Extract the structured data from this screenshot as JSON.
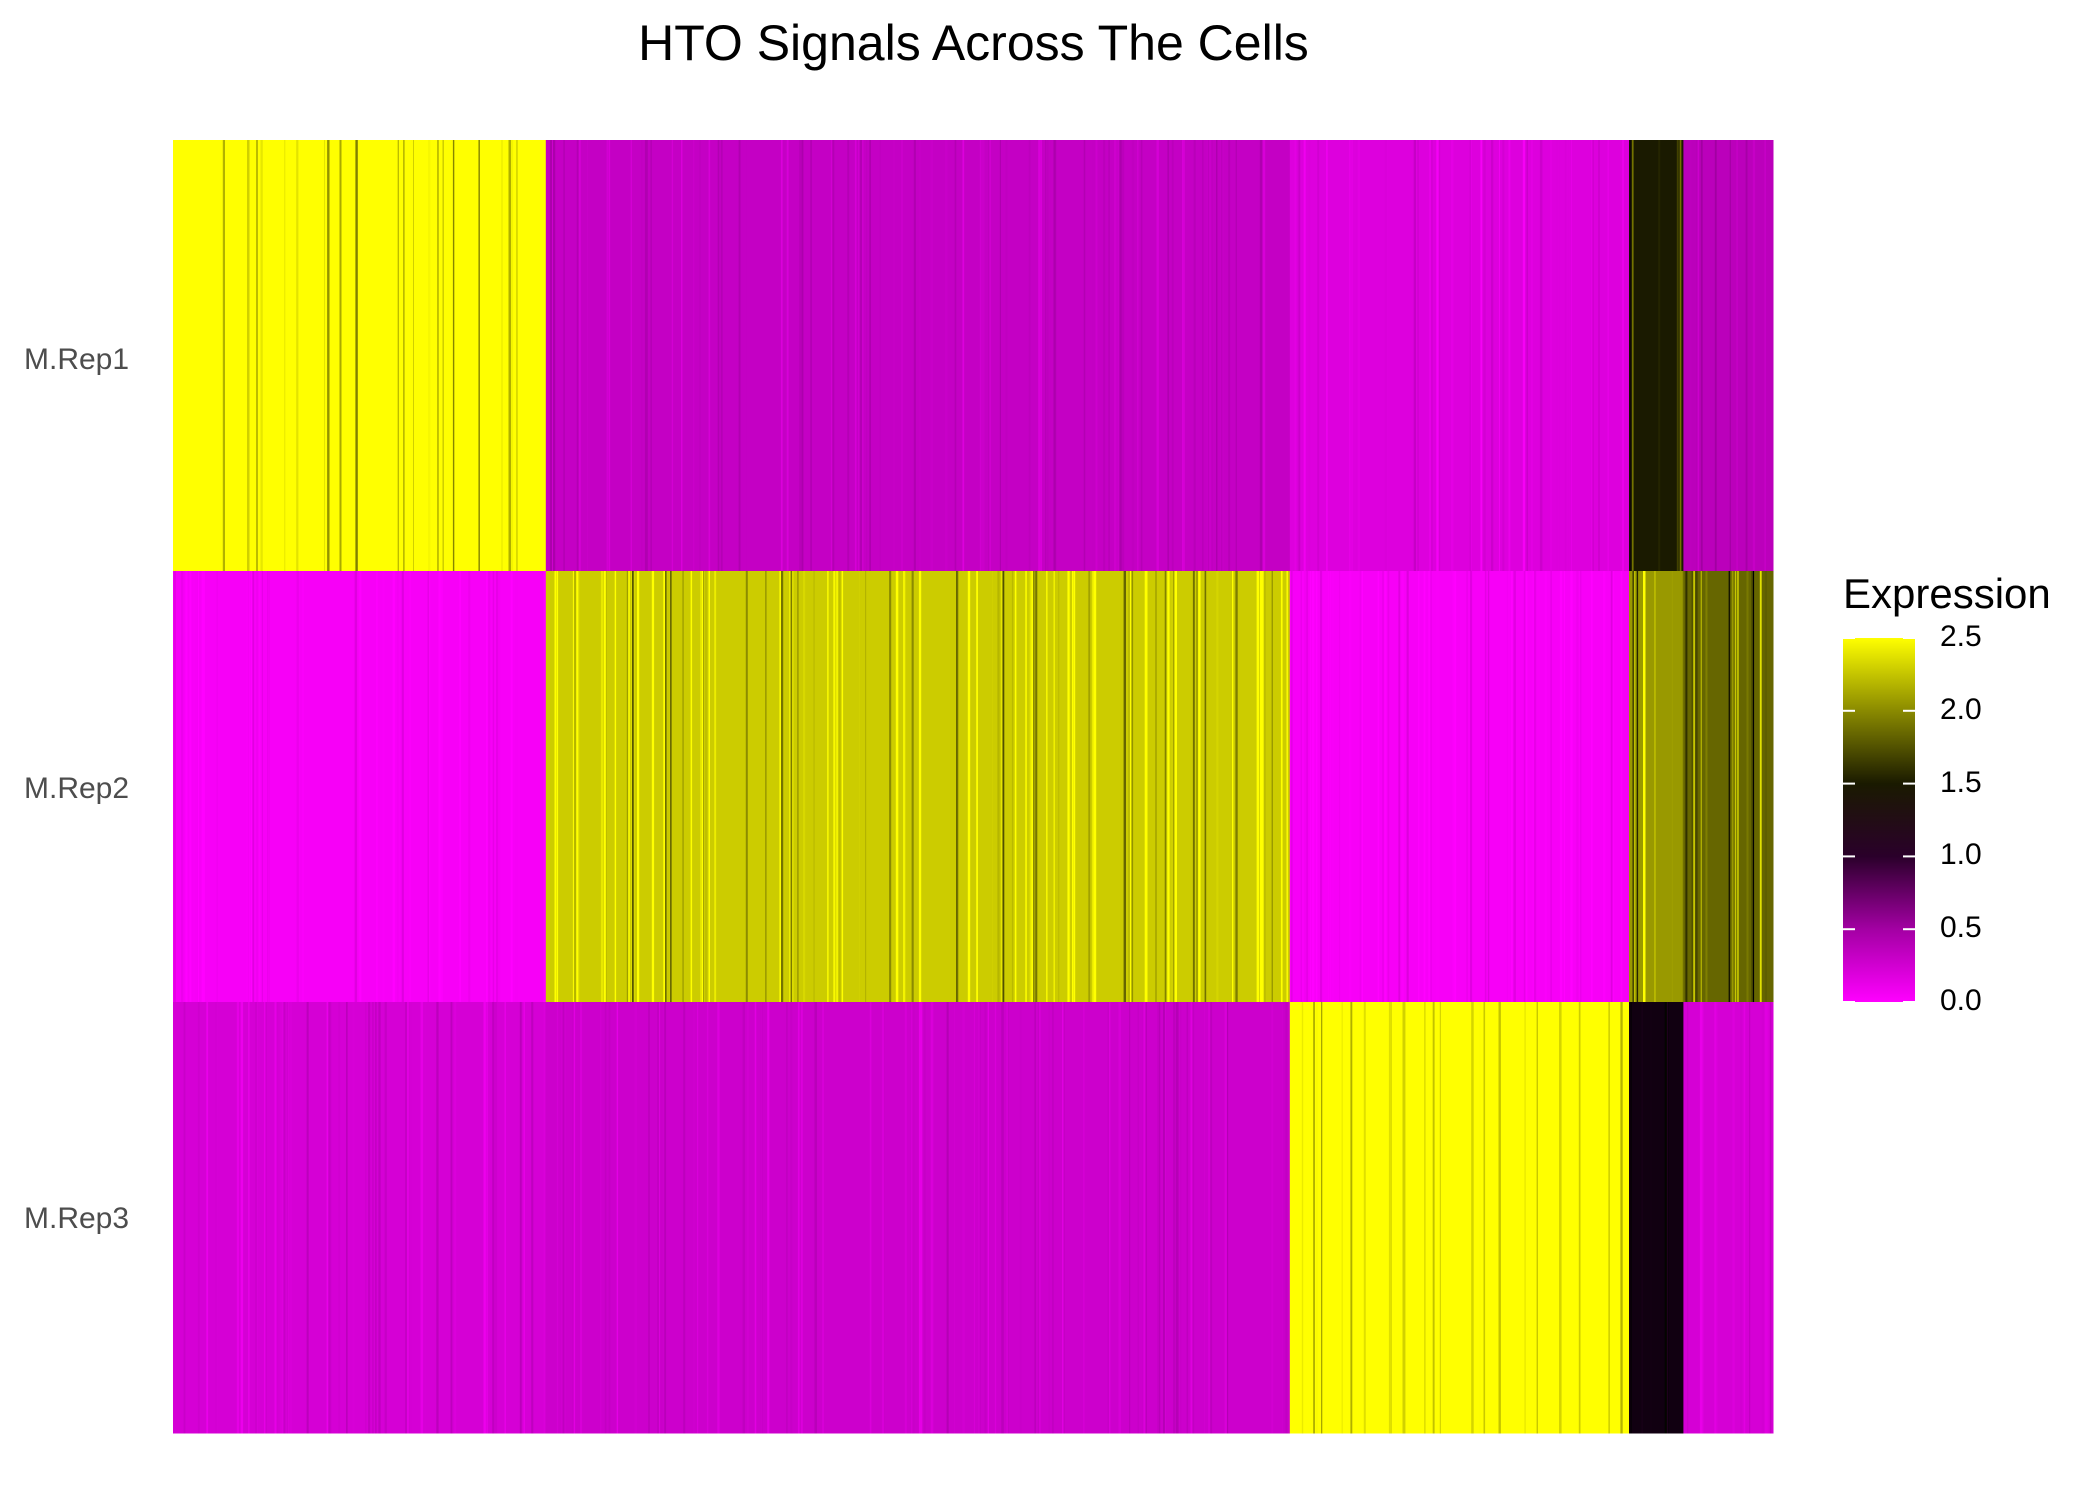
{
  "chart_data": {
    "type": "heatmap",
    "title": "HTO Signals Across The Cells",
    "rows": [
      "M.Rep1",
      "M.Rep2",
      "M.Rep3"
    ],
    "legend": {
      "title": "Expression",
      "ticks": [
        "2.5",
        "2.0",
        "1.5",
        "1.0",
        "0.5",
        "0.0"
      ],
      "tick_values": [
        2.5,
        2.0,
        1.5,
        1.0,
        0.5,
        0.0
      ],
      "range": [
        0.0,
        2.5
      ],
      "palette": [
        "#ff00ff",
        "#000000",
        "#ffff00"
      ]
    },
    "cell_groups": [
      {
        "fraction": 0.233,
        "M.Rep1": 2.5,
        "M.Rep2": 0.05,
        "M.Rep3": 0.25
      },
      {
        "fraction": 0.465,
        "M.Rep1": 0.35,
        "M.Rep2": 2.3,
        "M.Rep3": 0.3
      },
      {
        "fraction": 0.212,
        "M.Rep1": 0.2,
        "M.Rep2": 0.05,
        "M.Rep3": 2.5
      },
      {
        "fraction": 0.034,
        "M.Rep1": 1.6,
        "M.Rep2": 2.1,
        "M.Rep3": 1.4
      },
      {
        "fraction": 0.056,
        "M.Rep1": 0.4,
        "M.Rep2": 1.9,
        "M.Rep3": 0.25
      }
    ]
  }
}
